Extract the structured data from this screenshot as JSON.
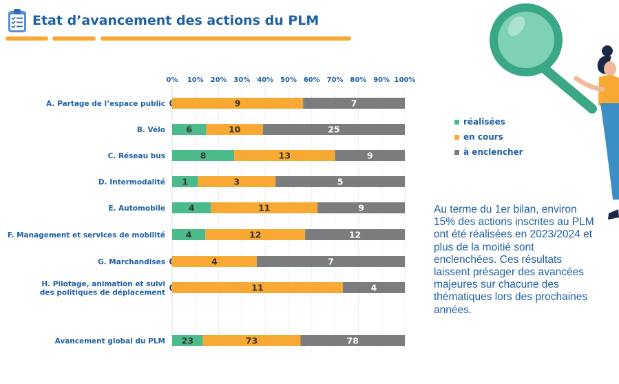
{
  "header": {
    "title": "Etat d’avancement des actions du PLM",
    "icon": "clipboard-checklist-icon"
  },
  "colors": {
    "realisees": "#4cbb8c",
    "en_cours": "#f7a933",
    "a_enclencher": "#7b7c7e",
    "text_blue": "#1f5fa3",
    "label_on_bar": "#333333",
    "label_on_grey": "#ffffff"
  },
  "legend": {
    "items": [
      {
        "label": "réalisées",
        "color": "#4cbb8c"
      },
      {
        "label": "en cours",
        "color": "#f7a933"
      },
      {
        "label": "à enclencher",
        "color": "#7b7c7e"
      }
    ]
  },
  "summary": {
    "text": "Au terme du 1er bilan, environ 15% des actions inscrites au PLM ont été réalisées en 2023/2024 et plus de la moitié sont enclenchées. Ces résultats laissent présager des avancées majeures sur chacune des thématiques lors des prochaines années."
  },
  "illustration": {
    "icon": "magnifying-glass-icon",
    "person": "person-holding-magnifier-icon"
  },
  "chart_data": {
    "type": "bar",
    "orientation": "horizontal",
    "stacked": "percent",
    "xlim": [
      0,
      100
    ],
    "xticks": [
      "0%",
      "10%",
      "20%",
      "30%",
      "40%",
      "50%",
      "60%",
      "70%",
      "80%",
      "90%",
      "100%"
    ],
    "categories": [
      [
        "A. Partage de l’espace public"
      ],
      [
        "B. Vélo"
      ],
      [
        "C. Réseau bus"
      ],
      [
        "D. Intermodalité"
      ],
      [
        "E. Automobile"
      ],
      [
        "F. Management et services de mobilité"
      ],
      [
        "G. Marchandises"
      ],
      [
        "H. Pilotage, animation et suivi",
        "des politiques de déplacement"
      ],
      [
        "Avancement global du PLM"
      ]
    ],
    "series": [
      {
        "name": "réalisées",
        "values": [
          0,
          6,
          8,
          1,
          4,
          4,
          0,
          0,
          23
        ]
      },
      {
        "name": "en cours",
        "values": [
          9,
          10,
          13,
          3,
          11,
          12,
          4,
          11,
          73
        ]
      },
      {
        "name": "à enclencher",
        "values": [
          7,
          25,
          9,
          5,
          9,
          12,
          7,
          4,
          78
        ]
      }
    ],
    "legend_position": "right",
    "grid": true
  }
}
